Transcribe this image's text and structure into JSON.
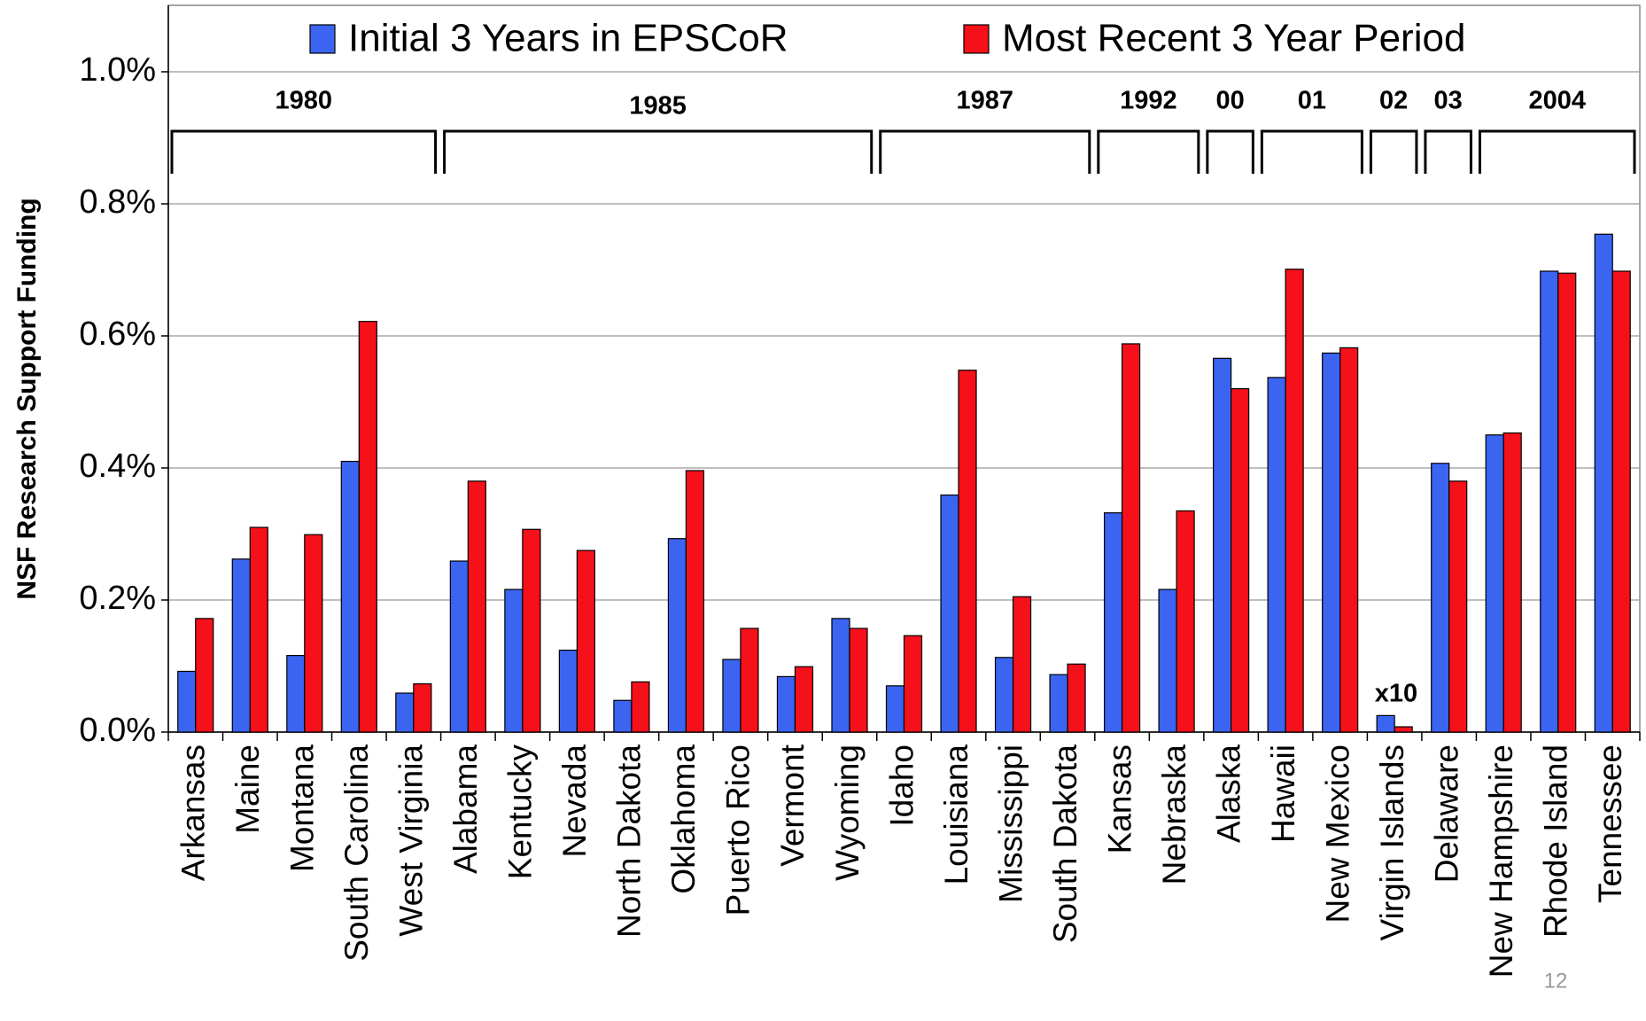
{
  "chart_data": {
    "type": "bar",
    "y_label": "NSF Research Support Funding",
    "categories": [
      "Arkansas",
      "Maine",
      "Montana",
      "South Carolina",
      "West Virginia",
      "Alabama",
      "Kentucky",
      "Nevada",
      "North Dakota",
      "Oklahoma",
      "Puerto Rico",
      "Vermont",
      "Wyoming",
      "Idaho",
      "Louisiana",
      "Mississippi",
      "South Dakota",
      "Kansas",
      "Nebraska",
      "Alaska",
      "Hawaii",
      "New Mexico",
      "Virgin Islands",
      "Delaware",
      "New Hampshire",
      "Rhode Island",
      "Tennessee"
    ],
    "series": [
      {
        "name": "Initial 3 Years in EPSCoR",
        "color": "#3b64f0",
        "values": [
          0.092,
          0.262,
          0.116,
          0.41,
          0.059,
          0.259,
          0.216,
          0.124,
          0.048,
          0.293,
          0.11,
          0.084,
          0.172,
          0.07,
          0.359,
          0.113,
          0.087,
          0.332,
          0.216,
          0.566,
          0.537,
          0.574,
          0.025,
          0.407,
          0.45,
          0.698,
          0.754
        ]
      },
      {
        "name": "Most Recent 3 Year Period",
        "color": "#f5101a",
        "values": [
          0.172,
          0.31,
          0.299,
          0.622,
          0.073,
          0.38,
          0.307,
          0.275,
          0.076,
          0.396,
          0.157,
          0.099,
          0.157,
          0.146,
          0.548,
          0.205,
          0.103,
          0.588,
          0.335,
          0.52,
          0.701,
          0.582,
          0.008,
          0.38,
          0.453,
          0.695,
          0.698
        ]
      }
    ],
    "ylim": [
      0,
      1.0
    ],
    "yticks": [
      {
        "value": 0,
        "label": "0.0%"
      },
      {
        "value": 0.2,
        "label": "0.2%"
      },
      {
        "value": 0.4,
        "label": "0.4%"
      },
      {
        "value": 0.6,
        "label": "0.6%"
      },
      {
        "value": 0.8,
        "label": "0.8%"
      },
      {
        "value": 1.0,
        "label": "1.0%"
      }
    ],
    "grid": true,
    "groups": [
      "1980",
      "1985",
      "1987",
      "1992",
      "00",
      "01",
      "02",
      "03",
      "2004"
    ],
    "annotation": "x10",
    "page_number": "12"
  }
}
